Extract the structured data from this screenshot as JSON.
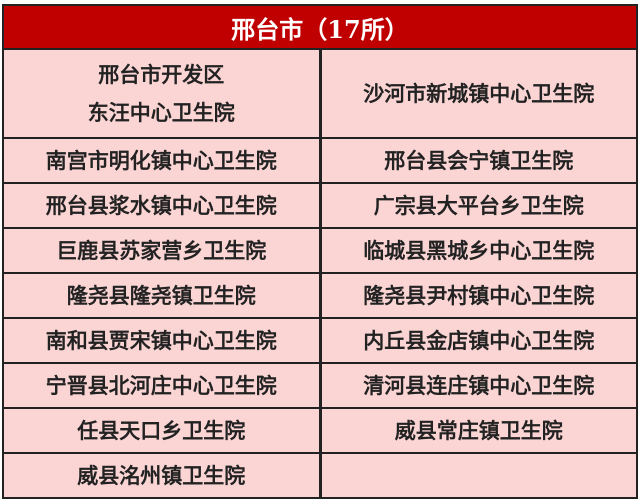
{
  "title": "邢台市（17所）",
  "colors": {
    "header": "#c00000",
    "cell": "#fbd4d4"
  },
  "rows": [
    {
      "left": [
        "邢台市开发区",
        "东汪中心卫生院"
      ],
      "right": [
        "沙河市新城镇中心卫生院"
      ]
    },
    {
      "left": [
        "南宫市明化镇中心卫生院"
      ],
      "right": [
        "邢台县会宁镇卫生院"
      ]
    },
    {
      "left": [
        "邢台县浆水镇中心卫生院"
      ],
      "right": [
        "广宗县大平台乡卫生院"
      ]
    },
    {
      "left": [
        "巨鹿县苏家营乡卫生院"
      ],
      "right": [
        "临城县黑城乡中心卫生院"
      ]
    },
    {
      "left": [
        "隆尧县隆尧镇卫生院"
      ],
      "right": [
        "隆尧县尹村镇中心卫生院"
      ]
    },
    {
      "left": [
        "南和县贾宋镇中心卫生院"
      ],
      "right": [
        "内丘县金店镇中心卫生院"
      ]
    },
    {
      "left": [
        "宁晋县北河庄中心卫生院"
      ],
      "right": [
        "清河县连庄镇中心卫生院"
      ]
    },
    {
      "left": [
        "任县天口乡卫生院"
      ],
      "right": [
        "威县常庄镇卫生院"
      ]
    },
    {
      "left": [
        "威县洺州镇卫生院"
      ],
      "right": []
    }
  ]
}
